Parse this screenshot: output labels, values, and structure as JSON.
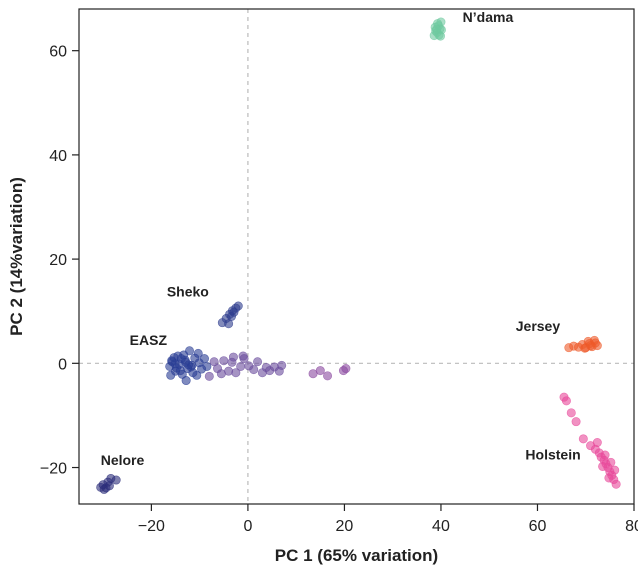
{
  "chart_data": {
    "type": "scatter",
    "title": "",
    "xlabel": "PC 1 (65% variation)",
    "ylabel": "PC 2 (14%variation)",
    "xlim": [
      -35,
      80
    ],
    "ylim": [
      -27,
      68
    ],
    "xticks": [
      -20,
      0,
      20,
      40,
      60,
      80
    ],
    "yticks": [
      -20,
      0,
      20,
      40,
      60
    ],
    "xtick_labels": [
      "−20",
      "0",
      "20",
      "40",
      "60",
      "80"
    ],
    "ytick_labels": [
      "−20",
      "0",
      "20",
      "40",
      "60"
    ],
    "reference_lines": {
      "x": 0,
      "y": 0,
      "style": "dashed",
      "color": "#bbbbbb"
    },
    "grid": false,
    "legend": "none",
    "series": [
      {
        "name": "N'dama",
        "color": "#6fc9a0",
        "points": [
          [
            38.6,
            62.9
          ],
          [
            39.2,
            63.5
          ],
          [
            39.8,
            64.2
          ],
          [
            40.0,
            65.5
          ],
          [
            39.5,
            64.8
          ],
          [
            38.9,
            63.8
          ],
          [
            39.6,
            63.0
          ],
          [
            40.1,
            64.0
          ],
          [
            38.8,
            64.5
          ],
          [
            39.3,
            65.2
          ],
          [
            39.9,
            62.8
          ],
          [
            39.1,
            64.1
          ]
        ]
      },
      {
        "name": "Jersey",
        "color": "#ee5a2a",
        "points": [
          [
            66.5,
            3.0
          ],
          [
            67.5,
            3.3
          ],
          [
            68.5,
            3.1
          ],
          [
            69.3,
            3.6
          ],
          [
            70.0,
            3.0
          ],
          [
            70.8,
            3.8
          ],
          [
            71.3,
            3.2
          ],
          [
            72.0,
            3.9
          ],
          [
            71.8,
            4.4
          ],
          [
            72.4,
            3.4
          ],
          [
            70.5,
            4.2
          ],
          [
            69.8,
            2.9
          ],
          [
            71.0,
            3.4
          ]
        ]
      },
      {
        "name": "Holstein",
        "color": "#e8479a",
        "points": [
          [
            65.5,
            -6.5
          ],
          [
            66.0,
            -7.2
          ],
          [
            67.0,
            -9.5
          ],
          [
            68.0,
            -11.2
          ],
          [
            69.5,
            -14.5
          ],
          [
            71.0,
            -15.8
          ],
          [
            72.0,
            -16.5
          ],
          [
            72.8,
            -17.2
          ],
          [
            73.2,
            -18.0
          ],
          [
            73.8,
            -18.6
          ],
          [
            74.2,
            -19.3
          ],
          [
            74.6,
            -20.0
          ],
          [
            75.0,
            -20.8
          ],
          [
            75.4,
            -21.5
          ],
          [
            75.8,
            -22.3
          ],
          [
            76.3,
            -23.2
          ],
          [
            74.0,
            -17.6
          ],
          [
            75.2,
            -19.0
          ],
          [
            73.5,
            -19.8
          ],
          [
            76.0,
            -20.5
          ],
          [
            74.8,
            -22.0
          ],
          [
            72.4,
            -15.2
          ]
        ]
      },
      {
        "name": "Sheko",
        "color": "#2f3d8e",
        "points": [
          [
            -5.3,
            7.8
          ],
          [
            -4.5,
            8.6
          ],
          [
            -3.8,
            9.4
          ],
          [
            -3.2,
            10.1
          ],
          [
            -2.5,
            10.6
          ],
          [
            -2.0,
            11.0
          ],
          [
            -4.0,
            7.6
          ],
          [
            -3.4,
            9.0
          ],
          [
            -2.9,
            9.8
          ]
        ]
      },
      {
        "name": "EASZ",
        "color": "#2a3d94",
        "points": [
          [
            -16.2,
            -0.6
          ],
          [
            -15.7,
            0.3
          ],
          [
            -15.0,
            -1.5
          ],
          [
            -14.5,
            1.4
          ],
          [
            -14.2,
            -0.2
          ],
          [
            -13.6,
            -2.1
          ],
          [
            -13.0,
            0.6
          ],
          [
            -12.5,
            -1.0
          ],
          [
            -12.1,
            2.4
          ],
          [
            -11.6,
            -0.4
          ],
          [
            -11.0,
            1.0
          ],
          [
            -10.6,
            -2.3
          ],
          [
            -10.1,
            0.1
          ],
          [
            -9.6,
            -1.1
          ],
          [
            -9.0,
            0.9
          ],
          [
            -8.5,
            -0.6
          ],
          [
            -16.0,
            -2.3
          ],
          [
            -15.3,
            1.1
          ],
          [
            -14.8,
            -0.9
          ],
          [
            -13.3,
            1.6
          ],
          [
            -12.8,
            -3.3
          ],
          [
            -11.4,
            -1.8
          ],
          [
            -10.3,
            1.9
          ],
          [
            -15.8,
            0.5
          ],
          [
            -14.0,
            -1.4
          ],
          [
            -12.9,
            0.2
          ],
          [
            -11.8,
            -0.7
          ],
          [
            -13.8,
            0.9
          ],
          [
            -12.3,
            -0.3
          ],
          [
            -15.1,
            -0.1
          ]
        ]
      },
      {
        "name": "",
        "color": "#6a4c9c",
        "points": [
          [
            -7.0,
            0.3
          ],
          [
            -6.3,
            -1.0
          ],
          [
            -5.5,
            -2.0
          ],
          [
            -5.0,
            0.5
          ],
          [
            -4.0,
            -1.5
          ],
          [
            -3.3,
            0.2
          ],
          [
            -2.5,
            -1.8
          ],
          [
            -1.5,
            -0.6
          ],
          [
            -0.8,
            0.9
          ],
          [
            0.2,
            -0.5
          ],
          [
            1.2,
            -1.2
          ],
          [
            2.0,
            0.3
          ],
          [
            3.0,
            -1.8
          ],
          [
            3.8,
            -0.8
          ],
          [
            4.5,
            -1.4
          ],
          [
            5.5,
            -0.7
          ],
          [
            6.5,
            -1.5
          ],
          [
            7.0,
            -0.4
          ],
          [
            -8.0,
            -2.5
          ],
          [
            -3.0,
            1.2
          ],
          [
            -1.0,
            1.4
          ]
        ]
      },
      {
        "name": "",
        "color": "#8b4aa0",
        "points": [
          [
            13.5,
            -2.0
          ],
          [
            15.0,
            -1.4
          ],
          [
            16.5,
            -2.4
          ],
          [
            19.8,
            -1.4
          ],
          [
            20.3,
            -1.0
          ]
        ]
      },
      {
        "name": "Nelore",
        "color": "#2b2d7a",
        "points": [
          [
            -30.5,
            -23.8
          ],
          [
            -30.0,
            -23.3
          ],
          [
            -29.4,
            -23.9
          ],
          [
            -29.0,
            -22.8
          ],
          [
            -28.4,
            -22.1
          ],
          [
            -27.3,
            -22.4
          ],
          [
            -29.8,
            -24.2
          ],
          [
            -28.7,
            -23.5
          ]
        ]
      }
    ],
    "annotations": [
      {
        "text": "N’dama",
        "x": 44.5,
        "y": 65.5
      },
      {
        "text": "Jersey",
        "x": 55.5,
        "y": 6.2
      },
      {
        "text": "Holstein",
        "x": 57.5,
        "y": -18.5
      },
      {
        "text": "Sheko",
        "x": -16.8,
        "y": 12.8
      },
      {
        "text": "EASZ",
        "x": -24.5,
        "y": 3.5
      },
      {
        "text": "Nelore",
        "x": -30.5,
        "y": -19.5
      }
    ]
  }
}
